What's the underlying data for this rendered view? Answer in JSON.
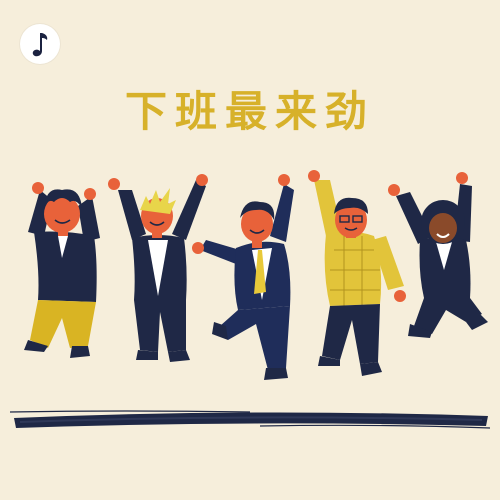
{
  "poster": {
    "title": "下班最来劲",
    "background_color": "#f6eedb",
    "accent_color": "#d7b12a"
  },
  "logo": {
    "icon": "music-note-icon"
  },
  "illustration": {
    "figures": [
      {
        "name": "figure-curly-hair",
        "top": "navy",
        "bottom": "mustard"
      },
      {
        "name": "figure-blonde-hair",
        "top": "navy-vest",
        "bottom": "navy"
      },
      {
        "name": "figure-yellow-tie",
        "top": "navy-suit",
        "bottom": "navy-suit"
      },
      {
        "name": "figure-glasses",
        "top": "yellow-plaid",
        "bottom": "navy"
      },
      {
        "name": "figure-curly-afro",
        "top": "navy",
        "bottom": "navy"
      }
    ],
    "ground": "brush-stroke"
  }
}
